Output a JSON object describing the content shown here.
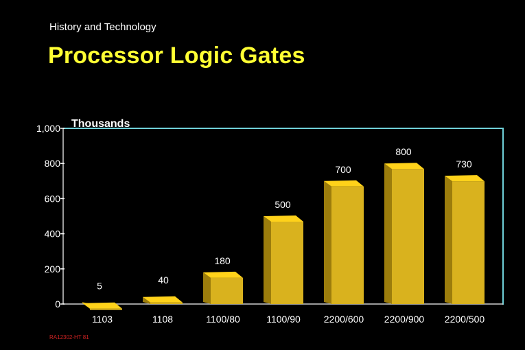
{
  "header": {
    "subtitle": "History and Technology"
  },
  "title": "Processor Logic Gates",
  "footnote": "RA12302-HT 81",
  "colors": {
    "background": "#000000",
    "title": "#ffff33",
    "bar_front": "#d9b21e",
    "bar_side": "#9c7d0c",
    "bar_top": "#ffd21a",
    "frame": "#6fd0d8"
  },
  "chart_data": {
    "type": "bar",
    "title": "Processor Logic Gates",
    "ylabel": "Thousands",
    "xlabel": "",
    "categories": [
      "1103",
      "1108",
      "1100/80",
      "1100/90",
      "2200/600",
      "2200/900",
      "2200/500"
    ],
    "values": [
      5,
      40,
      180,
      500,
      700,
      800,
      730
    ],
    "value_labels": [
      "5",
      "40",
      "180",
      "500",
      "700",
      "800",
      "730"
    ],
    "ylim": [
      0,
      1000
    ],
    "yticks": [
      0,
      200,
      400,
      600,
      800,
      1000
    ],
    "ytick_labels": [
      "0",
      "200",
      "400",
      "600",
      "800",
      "1,000"
    ],
    "grid": false,
    "style": "3d"
  }
}
